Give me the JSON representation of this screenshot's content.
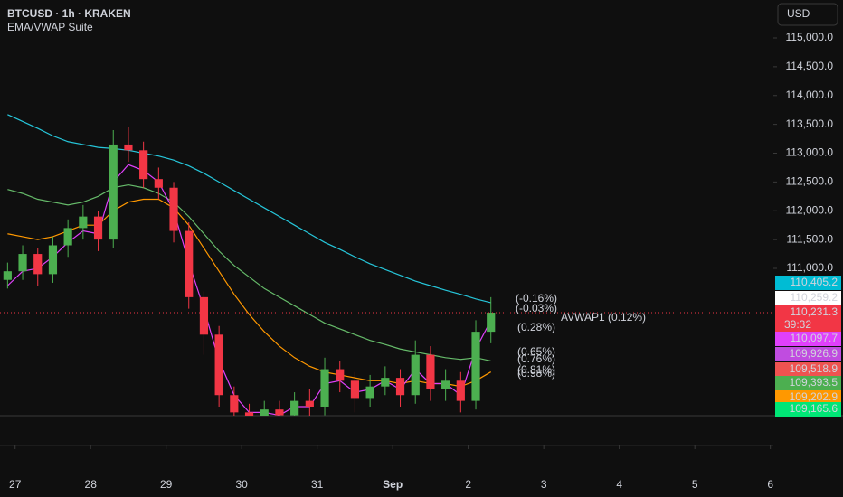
{
  "chart_data": {
    "type": "candlestick",
    "title": "BTCUSD · 1h · KRAKEN",
    "subtitle": "EMA/VWAP Suite",
    "currency": "USD",
    "up_color": "#4caf50",
    "down_color": "#f23645",
    "x": [
      -0.1,
      0.1,
      0.3,
      0.5,
      0.7,
      0.9,
      1.1,
      1.3,
      1.5,
      1.7,
      1.9,
      2.1,
      2.3,
      2.5,
      2.7,
      2.9,
      3.1,
      3.3,
      3.5,
      3.7,
      3.9,
      4.1,
      4.3,
      4.5,
      4.7,
      4.9,
      5.1,
      5.3,
      5.5,
      5.7,
      5.9,
      6.1,
      6.3
    ],
    "open": [
      110800,
      110950,
      111250,
      110900,
      111400,
      111700,
      111900,
      111500,
      113150,
      113050,
      112550,
      112400,
      111650,
      110500,
      109850,
      108800,
      108500,
      108400,
      108550,
      108450,
      108700,
      108600,
      109250,
      109050,
      108750,
      108950,
      109100,
      108800,
      109500,
      108900,
      109050,
      108700,
      109900
    ],
    "high": [
      111100,
      111400,
      111350,
      111550,
      111850,
      112100,
      112000,
      113400,
      113450,
      113200,
      112750,
      112500,
      111800,
      110600,
      110000,
      108950,
      108650,
      108700,
      108700,
      108850,
      108900,
      109450,
      109400,
      109200,
      109150,
      109300,
      109250,
      109750,
      109650,
      109250,
      109200,
      110100,
      110500
    ],
    "low": [
      110650,
      110800,
      110700,
      110750,
      111200,
      111500,
      111300,
      111350,
      112850,
      112400,
      112200,
      111450,
      110300,
      109500,
      108600,
      108300,
      108200,
      108250,
      108250,
      108300,
      108400,
      108450,
      108850,
      108500,
      108600,
      108800,
      108600,
      108650,
      108700,
      108700,
      108500,
      108550,
      109700
    ],
    "close": [
      110950,
      111250,
      110900,
      111400,
      111700,
      111900,
      111500,
      113150,
      113050,
      112550,
      112400,
      111650,
      110500,
      109850,
      108800,
      108500,
      108400,
      108550,
      108450,
      108700,
      108600,
      109250,
      109050,
      108750,
      108950,
      109100,
      108800,
      109500,
      108900,
      109050,
      108700,
      109900,
      110231.3
    ],
    "series": [
      {
        "color": "#26c6da",
        "values": [
          113670,
          113550,
          113430,
          113300,
          113200,
          113150,
          113100,
          113080,
          113050,
          113000,
          112950,
          112880,
          112780,
          112650,
          112500,
          112350,
          112200,
          112050,
          111900,
          111750,
          111600,
          111450,
          111330,
          111200,
          111080,
          110980,
          110880,
          110780,
          110700,
          110620,
          110550,
          110470,
          110405.2
        ]
      },
      {
        "color": "#66bb6a",
        "values": [
          112370,
          112300,
          112200,
          112150,
          112100,
          112150,
          112250,
          112400,
          112450,
          112400,
          112300,
          112150,
          111900,
          111600,
          111300,
          111050,
          110850,
          110650,
          110500,
          110350,
          110200,
          110050,
          109950,
          109850,
          109750,
          109680,
          109600,
          109550,
          109500,
          109450,
          109420,
          109450,
          109393.5
        ]
      },
      {
        "color": "#ff9800",
        "values": [
          111600,
          111550,
          111500,
          111550,
          111650,
          111750,
          111750,
          112000,
          112150,
          112200,
          112200,
          112050,
          111750,
          111350,
          110950,
          110550,
          110200,
          109900,
          109650,
          109450,
          109300,
          109200,
          109150,
          109100,
          109050,
          109050,
          109000,
          109050,
          109000,
          109000,
          108950,
          109050,
          109202.9
        ]
      },
      {
        "color": "#e040fb",
        "values": [
          110700,
          110950,
          111000,
          111200,
          111450,
          111650,
          111600,
          112500,
          112800,
          112700,
          112500,
          112000,
          111100,
          110300,
          109400,
          108800,
          108500,
          108500,
          108450,
          108600,
          108600,
          109000,
          109050,
          108850,
          108900,
          109050,
          108900,
          109250,
          109000,
          109000,
          108800,
          109600,
          110097.7
        ]
      }
    ],
    "current_price": 110231.3,
    "countdown": "39:32",
    "price_labels": [
      {
        "value": 110405.2,
        "label": "110,405.2",
        "color": "#00bcd4"
      },
      {
        "value": 110259.2,
        "label": "110,259.2",
        "color": "#ffffff"
      },
      {
        "value": 110231.3,
        "label": "110,231.3",
        "color": "#f23645"
      },
      {
        "value": 110097.7,
        "label": "110,097.7",
        "color": "#e040fb"
      },
      {
        "value": 109926.9,
        "label": "109,926.9",
        "color": "#c04ce0"
      },
      {
        "value": 109518.9,
        "label": "109,518.9",
        "color": "#ef5350"
      },
      {
        "value": 109393.5,
        "label": "109,393.5",
        "color": "#4caf50"
      },
      {
        "value": 109202.9,
        "label": "109,202.9",
        "color": "#ff9800"
      },
      {
        "value": 109165.6,
        "label": "109,165.6",
        "color": "#00e676"
      }
    ],
    "annotations": [
      {
        "text": "(-0.16%)",
        "color": "#26c6da"
      },
      {
        "text": "(-0.03%)",
        "color": "#d1d4dc"
      },
      {
        "text": "AVWAP1 (0.12%)",
        "color": "#c04ce0"
      },
      {
        "text": "(0.28%)",
        "color": "#c04ce0"
      },
      {
        "text": "(0.65%)",
        "color": "#ef5350"
      },
      {
        "text": "(0.76%)",
        "color": "#66bb6a"
      },
      {
        "text": "(0.81%)",
        "color": "#00e676"
      },
      {
        "text": "(0.98%)",
        "color": "#cddc39"
      }
    ],
    "xlim": [
      -0.2,
      10.04
    ],
    "ylim": [
      108443,
      115659
    ],
    "xticks": [
      {
        "value": 0,
        "label": "27"
      },
      {
        "value": 1,
        "label": "28"
      },
      {
        "value": 2,
        "label": "29"
      },
      {
        "value": 3,
        "label": "30"
      },
      {
        "value": 4,
        "label": "31"
      },
      {
        "value": 5,
        "label": "Sep"
      },
      {
        "value": 6,
        "label": "2"
      },
      {
        "value": 7,
        "label": "3"
      },
      {
        "value": 8,
        "label": "4"
      },
      {
        "value": 9,
        "label": "5"
      },
      {
        "value": 10,
        "label": "6"
      }
    ],
    "yticks": [
      {
        "value": 111000,
        "label": "111,000.0"
      },
      {
        "value": 111500,
        "label": "111,500.0"
      },
      {
        "value": 112000,
        "label": "112,000.0"
      },
      {
        "value": 112500,
        "label": "112,500.0"
      },
      {
        "value": 113000,
        "label": "113,000.0"
      },
      {
        "value": 113500,
        "label": "113,500.0"
      },
      {
        "value": 114000,
        "label": "114,000.0"
      },
      {
        "value": 114500,
        "label": "114,500.0"
      },
      {
        "value": 115000,
        "label": "115,000.0"
      }
    ],
    "grid": false
  }
}
